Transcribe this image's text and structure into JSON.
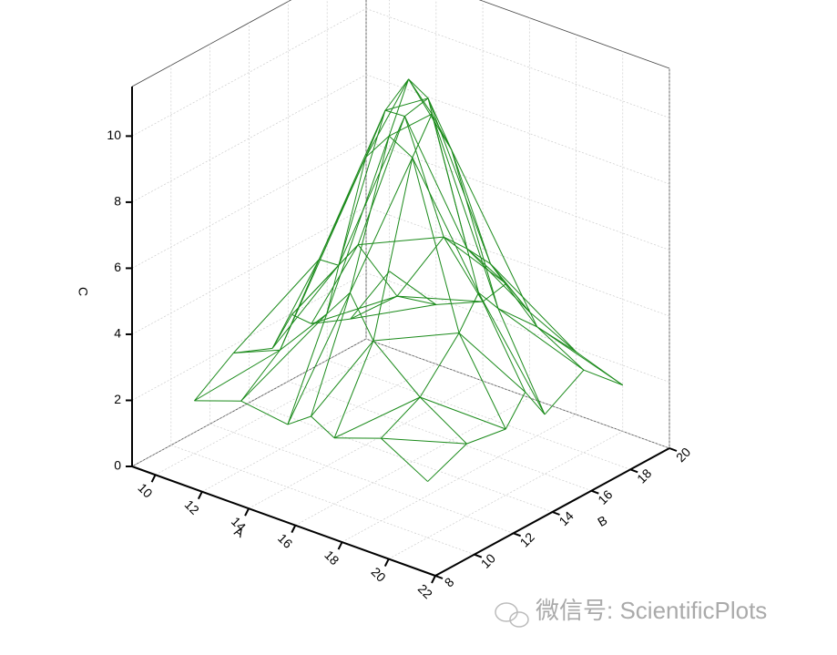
{
  "chart_data": {
    "type": "wireframe3d",
    "x_label": "A",
    "y_label": "B",
    "z_label": "C",
    "x": [
      10,
      12,
      14,
      15,
      16,
      18,
      20
    ],
    "y": [
      10,
      12,
      14,
      15,
      16,
      18,
      20
    ],
    "z": [
      [
        1.6,
        2.4,
        1.9,
        2.6,
        2.0,
        1.5,
        2.3
      ],
      [
        2.1,
        3.0,
        5.1,
        4.6,
        4.9,
        2.7,
        1.8
      ],
      [
        1.9,
        4.6,
        8.7,
        9.8,
        9.3,
        5.0,
        2.4
      ],
      [
        2.4,
        5.5,
        9.6,
        11.0,
        10.1,
        4.9,
        3.2
      ],
      [
        2.0,
        4.3,
        9.2,
        10.2,
        8.8,
        4.7,
        2.6
      ],
      [
        2.5,
        3.1,
        4.4,
        5.3,
        4.5,
        3.3,
        1.9
      ],
      [
        1.7,
        2.2,
        2.0,
        2.8,
        1.8,
        2.5,
        1.4
      ]
    ],
    "color": "#1a8a1a",
    "xlim": [
      9,
      22
    ],
    "ylim": [
      8,
      20
    ],
    "zlim": [
      0,
      11.5
    ],
    "xticks": [
      10,
      12,
      14,
      16,
      18,
      20,
      22
    ],
    "yticks": [
      8,
      10,
      12,
      14,
      16,
      18,
      20
    ],
    "zticks": [
      0,
      2,
      4,
      6,
      8,
      10
    ],
    "grid": true,
    "watermark": "微信号: ScientificPlots"
  }
}
